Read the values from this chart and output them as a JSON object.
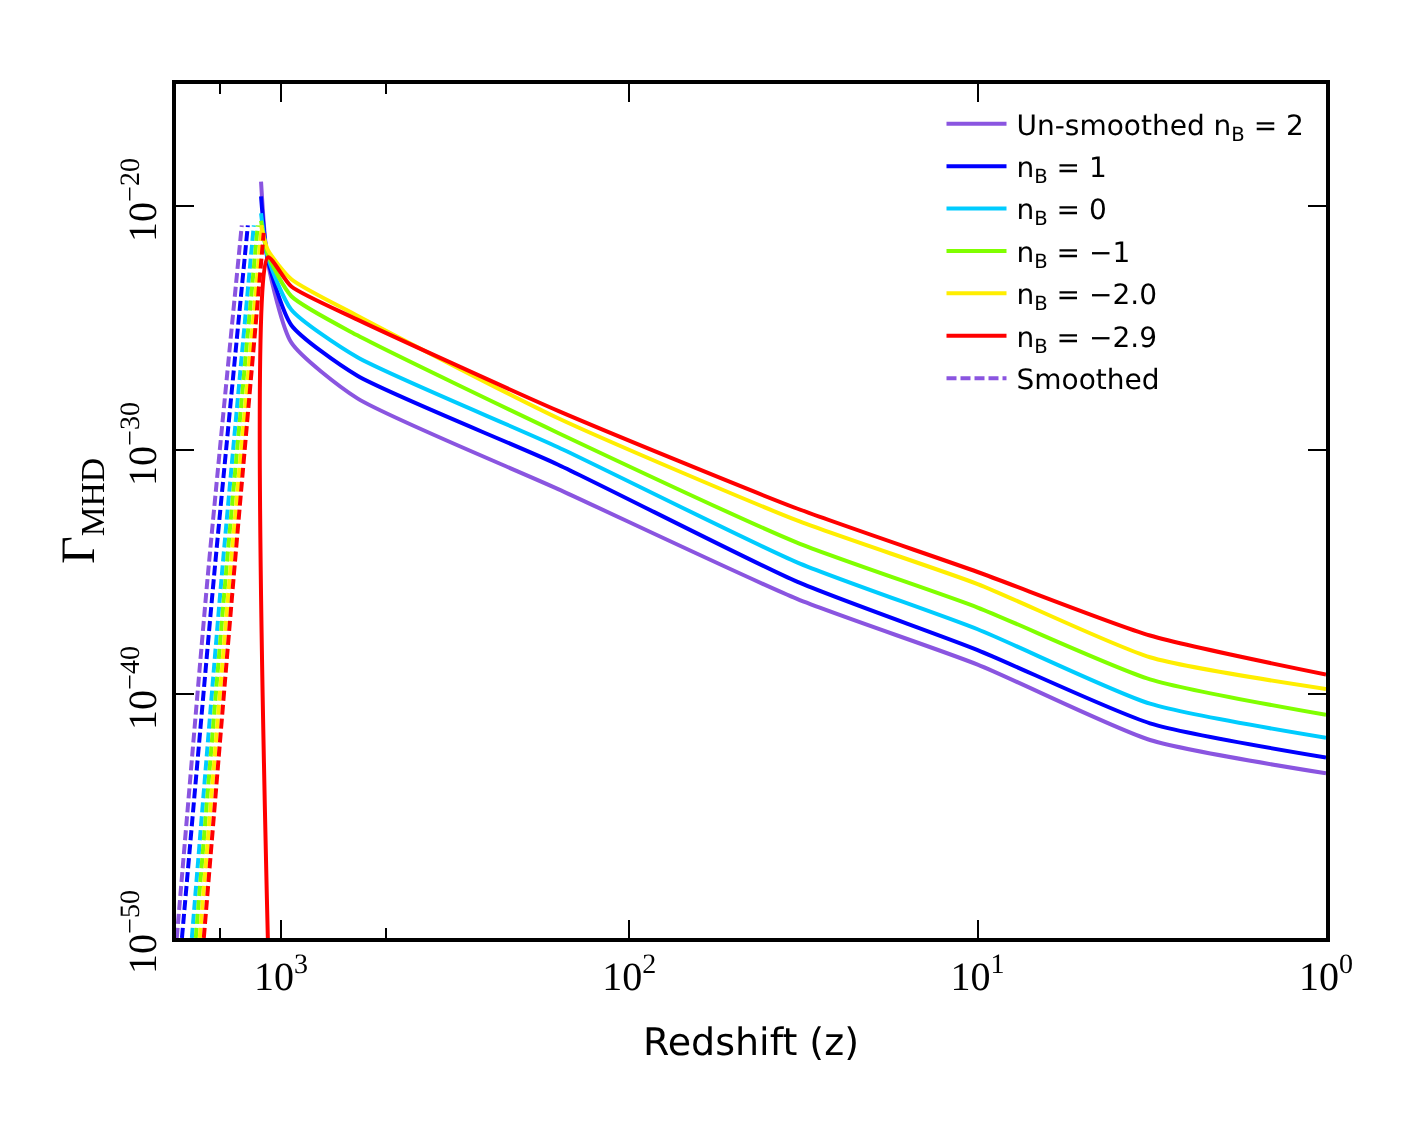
{
  "chart_data": {
    "type": "line",
    "xlabel": "Redshift (z)",
    "ylabel": "Γ$_{MHD}$",
    "log": "xy",
    "xlim": [
      2000,
      1
    ],
    "ylim": [
      1e-50,
      1e-15
    ],
    "xticks": [
      {
        "value": 1000,
        "label": "10$^{3}$"
      },
      {
        "value": 100,
        "label": "10$^{2}$"
      },
      {
        "value": 10,
        "label": "10$^{1}$"
      },
      {
        "value": 1,
        "label": "10$^{0}$"
      }
    ],
    "yticks": [
      {
        "value": 1e-50,
        "label": "10$^{−50}$"
      },
      {
        "value": 1e-40,
        "label": "10$^{−40}$"
      },
      {
        "value": 1e-30,
        "label": "10$^{−30}$"
      },
      {
        "value": 1e-20,
        "label": "10$^{−20}$"
      }
    ],
    "legend": "top right",
    "marker": "none",
    "line_style": "solid",
    "series": [
      {
        "name": "Un-smoothed n$_{B}$ = 2",
        "color": "#8a55e0",
        "x": [
          1140,
          1090,
          933,
          603,
          160,
          33,
          10,
          3.2,
          1
        ],
        "values": [
          1e-19,
          5e-23,
          2.5e-26,
          1.3e-28,
          2.5e-32,
          7.9e-37,
          1.6e-39,
          1.3e-42,
          5.6e-44
        ]
      },
      {
        "name": "n$_{B}$ = 1",
        "color": "#0000ff",
        "x": [
          1140,
          1090,
          933,
          603,
          160,
          33,
          10,
          3.2,
          1
        ],
        "values": [
          2.5e-20,
          6.3e-23,
          1.3e-25,
          1.1e-27,
          2.5e-31,
          4e-36,
          6.3e-39,
          6.3e-42,
          2.5e-43
        ]
      },
      {
        "name": "n$_{B}$ = 0",
        "color": "#00ccff",
        "x": [
          1140,
          1090,
          933,
          603,
          160,
          33,
          10,
          3.2,
          1
        ],
        "values": [
          5e-21,
          7.9e-23,
          5.6e-25,
          6.3e-27,
          1.3e-30,
          2.5e-35,
          4.5e-38,
          4e-41,
          1.6e-42
        ]
      },
      {
        "name": "n$_{B}$ = −1",
        "color": "#80ff00",
        "x": [
          1140,
          1090,
          933,
          603,
          160,
          33,
          10,
          3.2,
          1
        ],
        "values": [
          2.5e-21,
          1e-22,
          2e-24,
          5e-26,
          5e-30,
          1.6e-34,
          3.5e-37,
          4e-40,
          1.4e-41
        ]
      },
      {
        "name": "n$_{B}$ = −2.0",
        "color": "#ffee00",
        "x": [
          1140,
          1090,
          933,
          603,
          160,
          33,
          10,
          3.2,
          1
        ],
        "values": [
          1.6e-21,
          1.6e-22,
          1e-23,
          3.2e-25,
          2e-29,
          1.3e-33,
          3.2e-36,
          3.2e-39,
          1.6e-40
        ]
      },
      {
        "name": "n$_{B}$ = −2.9",
        "color": "#ff0000",
        "x": [
          1090,
          1090,
          933,
          603,
          160,
          33,
          10,
          3.2,
          1
        ],
        "values": [
          1e-50,
          7.9e-23,
          5e-24,
          2.2e-25,
          4e-29,
          4e-33,
          1e-35,
          2.5e-38,
          6.3e-40
        ]
      },
      {
        "name": "Smoothed",
        "color": "#8a55e0",
        "line_style": "dashed",
        "x": [
          1990,
          1622,
          1295
        ],
        "values": [
          1e-50,
          6.3e-36,
          1.6e-21
        ]
      },
      {
        "color": "#0000ff",
        "line_style": "dashed",
        "x": [
          1923,
          1556,
          1244
        ],
        "values": [
          1e-50,
          6.3e-36,
          1.6e-21
        ]
      },
      {
        "color": "#00ccff",
        "line_style": "dashed",
        "x": [
          1801,
          1479,
          1196
        ],
        "values": [
          1e-50,
          6.3e-36,
          1.6e-21
        ]
      },
      {
        "color": "#80ff00",
        "line_style": "dashed",
        "x": [
          1755,
          1440,
          1165
        ],
        "values": [
          1e-50,
          6.3e-36,
          1.6e-21
        ]
      },
      {
        "color": "#ffee00",
        "line_style": "dashed",
        "x": [
          1709,
          1402,
          1134
        ],
        "values": [
          1e-50,
          6.3e-36,
          1.6e-21
        ]
      },
      {
        "color": "#ff0000",
        "line_style": "dashed",
        "x": [
          1664,
          1366,
          1120
        ],
        "values": [
          1e-50,
          6.3e-36,
          7.9e-22
        ]
      }
    ]
  }
}
